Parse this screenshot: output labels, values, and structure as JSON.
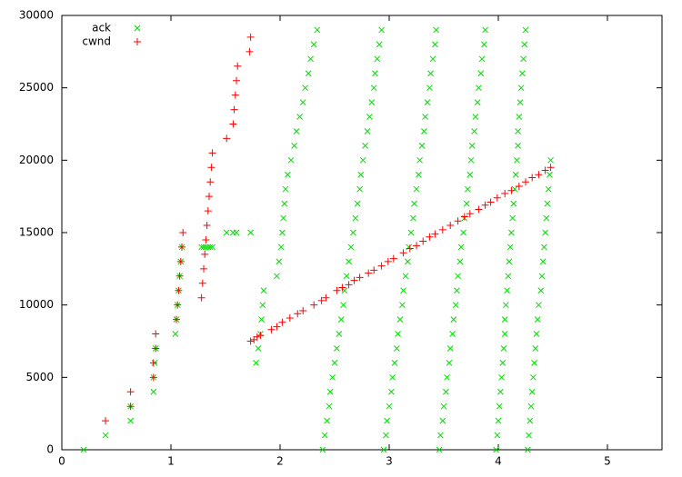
{
  "chart_data": {
    "type": "scatter",
    "xlim": [
      0,
      5.5
    ],
    "ylim": [
      0,
      30000
    ],
    "xticks": [
      0,
      1,
      2,
      3,
      4,
      5
    ],
    "yticks": [
      0,
      5000,
      10000,
      15000,
      20000,
      25000,
      30000
    ],
    "legend": "top-left",
    "series": [
      {
        "name": "ack",
        "color": "#00dd00",
        "marker": "x",
        "x": [
          0.2,
          0.4,
          0.63,
          0.63,
          0.84,
          0.84,
          0.85,
          0.86,
          1.04,
          1.05,
          1.06,
          1.07,
          1.08,
          1.09,
          1.1,
          1.28,
          1.3,
          1.32,
          1.34,
          1.36,
          1.38,
          1.51,
          1.57,
          1.6,
          1.73,
          1.78,
          1.8,
          1.82,
          1.83,
          1.84,
          1.85,
          1.97,
          1.99,
          2.01,
          2.02,
          2.03,
          2.04,
          2.05,
          2.07,
          2.1,
          2.13,
          2.15,
          2.18,
          2.21,
          2.23,
          2.26,
          2.28,
          2.31,
          2.34,
          2.39,
          2.41,
          2.43,
          2.45,
          2.46,
          2.48,
          2.5,
          2.52,
          2.54,
          2.56,
          2.58,
          2.59,
          2.61,
          2.63,
          2.65,
          2.67,
          2.69,
          2.71,
          2.73,
          2.74,
          2.76,
          2.78,
          2.8,
          2.82,
          2.84,
          2.86,
          2.87,
          2.89,
          2.91,
          2.93,
          2.95,
          2.97,
          2.98,
          3.0,
          3.02,
          3.03,
          3.05,
          3.07,
          3.08,
          3.1,
          3.12,
          3.13,
          3.15,
          3.17,
          3.18,
          3.2,
          3.22,
          3.23,
          3.25,
          3.27,
          3.28,
          3.3,
          3.32,
          3.33,
          3.35,
          3.37,
          3.38,
          3.4,
          3.42,
          3.43,
          3.46,
          3.47,
          3.49,
          3.5,
          3.52,
          3.53,
          3.55,
          3.56,
          3.58,
          3.59,
          3.61,
          3.62,
          3.63,
          3.65,
          3.66,
          3.68,
          3.69,
          3.71,
          3.72,
          3.74,
          3.75,
          3.76,
          3.78,
          3.79,
          3.81,
          3.82,
          3.84,
          3.85,
          3.87,
          3.88,
          3.98,
          3.99,
          4.0,
          4.01,
          4.02,
          4.03,
          4.04,
          4.05,
          4.06,
          4.06,
          4.07,
          4.08,
          4.09,
          4.1,
          4.11,
          4.12,
          4.13,
          4.14,
          4.15,
          4.16,
          4.17,
          4.18,
          4.18,
          4.19,
          4.2,
          4.21,
          4.22,
          4.23,
          4.24,
          4.25,
          4.27,
          4.28,
          4.29,
          4.3,
          4.31,
          4.32,
          4.33,
          4.34,
          4.35,
          4.36,
          4.37,
          4.39,
          4.4,
          4.41,
          4.42,
          4.43,
          4.44,
          4.45,
          4.46,
          4.47,
          4.48
        ],
        "values": [
          0,
          1000,
          2000,
          3000,
          4000,
          5000,
          6000,
          7000,
          8000,
          9000,
          10000,
          11000,
          12000,
          13000,
          14000,
          14000,
          14000,
          14000,
          14000,
          14000,
          14000,
          15000,
          15000,
          15000,
          15000,
          6000,
          7000,
          8000,
          9000,
          10000,
          11000,
          12000,
          13000,
          14000,
          15000,
          16000,
          17000,
          18000,
          19000,
          20000,
          21000,
          22000,
          23000,
          24000,
          25000,
          26000,
          27000,
          28000,
          29000,
          0,
          1000,
          2000,
          3000,
          4000,
          5000,
          6000,
          7000,
          8000,
          9000,
          10000,
          11000,
          12000,
          13000,
          14000,
          15000,
          16000,
          17000,
          18000,
          19000,
          20000,
          21000,
          22000,
          23000,
          24000,
          25000,
          26000,
          27000,
          28000,
          29000,
          0,
          1000,
          2000,
          3000,
          4000,
          5000,
          6000,
          7000,
          8000,
          9000,
          10000,
          11000,
          12000,
          13000,
          14000,
          15000,
          16000,
          17000,
          18000,
          19000,
          20000,
          21000,
          22000,
          23000,
          24000,
          25000,
          26000,
          27000,
          28000,
          29000,
          0,
          1000,
          2000,
          3000,
          4000,
          5000,
          6000,
          7000,
          8000,
          9000,
          10000,
          11000,
          12000,
          13000,
          14000,
          15000,
          16000,
          17000,
          18000,
          19000,
          20000,
          21000,
          22000,
          23000,
          24000,
          25000,
          26000,
          27000,
          28000,
          29000,
          0,
          1000,
          2000,
          3000,
          4000,
          5000,
          6000,
          7000,
          8000,
          9000,
          10000,
          11000,
          12000,
          13000,
          14000,
          15000,
          16000,
          17000,
          18000,
          19000,
          20000,
          21000,
          22000,
          23000,
          24000,
          25000,
          26000,
          27000,
          28000,
          29000,
          0,
          1000,
          2000,
          3000,
          4000,
          5000,
          6000,
          7000,
          8000,
          9000,
          10000,
          11000,
          12000,
          13000,
          14000,
          15000,
          16000,
          17000,
          18000,
          19000,
          20000
        ]
      },
      {
        "name": "cwnd",
        "color": "#ff0000",
        "marker": "+",
        "x": [
          0.4,
          0.63,
          0.63,
          0.84,
          0.84,
          0.86,
          0.86,
          1.05,
          1.06,
          1.07,
          1.08,
          1.09,
          1.1,
          1.11,
          1.28,
          1.29,
          1.3,
          1.31,
          1.32,
          1.33,
          1.34,
          1.35,
          1.36,
          1.37,
          1.38,
          1.51,
          1.57,
          1.58,
          1.59,
          1.6,
          1.61,
          1.72,
          1.73,
          1.73,
          1.76,
          1.79,
          1.82,
          1.92,
          1.97,
          2.02,
          2.09,
          2.16,
          2.21,
          2.31,
          2.38,
          2.42,
          2.52,
          2.57,
          2.63,
          2.68,
          2.73,
          2.81,
          2.86,
          2.93,
          2.99,
          3.04,
          3.13,
          3.19,
          3.25,
          3.31,
          3.37,
          3.42,
          3.49,
          3.56,
          3.63,
          3.69,
          3.74,
          3.82,
          3.88,
          3.93,
          3.99,
          4.06,
          4.12,
          4.19,
          4.25,
          4.31,
          4.37,
          4.43,
          4.48
        ],
        "values": [
          2000,
          3000,
          4000,
          5000,
          6000,
          7000,
          8000,
          9000,
          10000,
          11000,
          12000,
          13000,
          14000,
          15000,
          10500,
          11500,
          12500,
          13500,
          14500,
          15500,
          16500,
          17500,
          18500,
          19500,
          20500,
          21500,
          22500,
          23500,
          24500,
          25500,
          26500,
          27500,
          28500,
          7500,
          7600,
          7800,
          7900,
          8300,
          8500,
          8800,
          9100,
          9400,
          9600,
          10000,
          10300,
          10500,
          11000,
          11200,
          11400,
          11700,
          11900,
          12200,
          12400,
          12700,
          13000,
          13200,
          13600,
          13900,
          14100,
          14400,
          14700,
          14900,
          15200,
          15500,
          15800,
          16100,
          16300,
          16600,
          16900,
          17100,
          17400,
          17700,
          17900,
          18200,
          18500,
          18800,
          19000,
          19300,
          19500
        ]
      }
    ]
  }
}
